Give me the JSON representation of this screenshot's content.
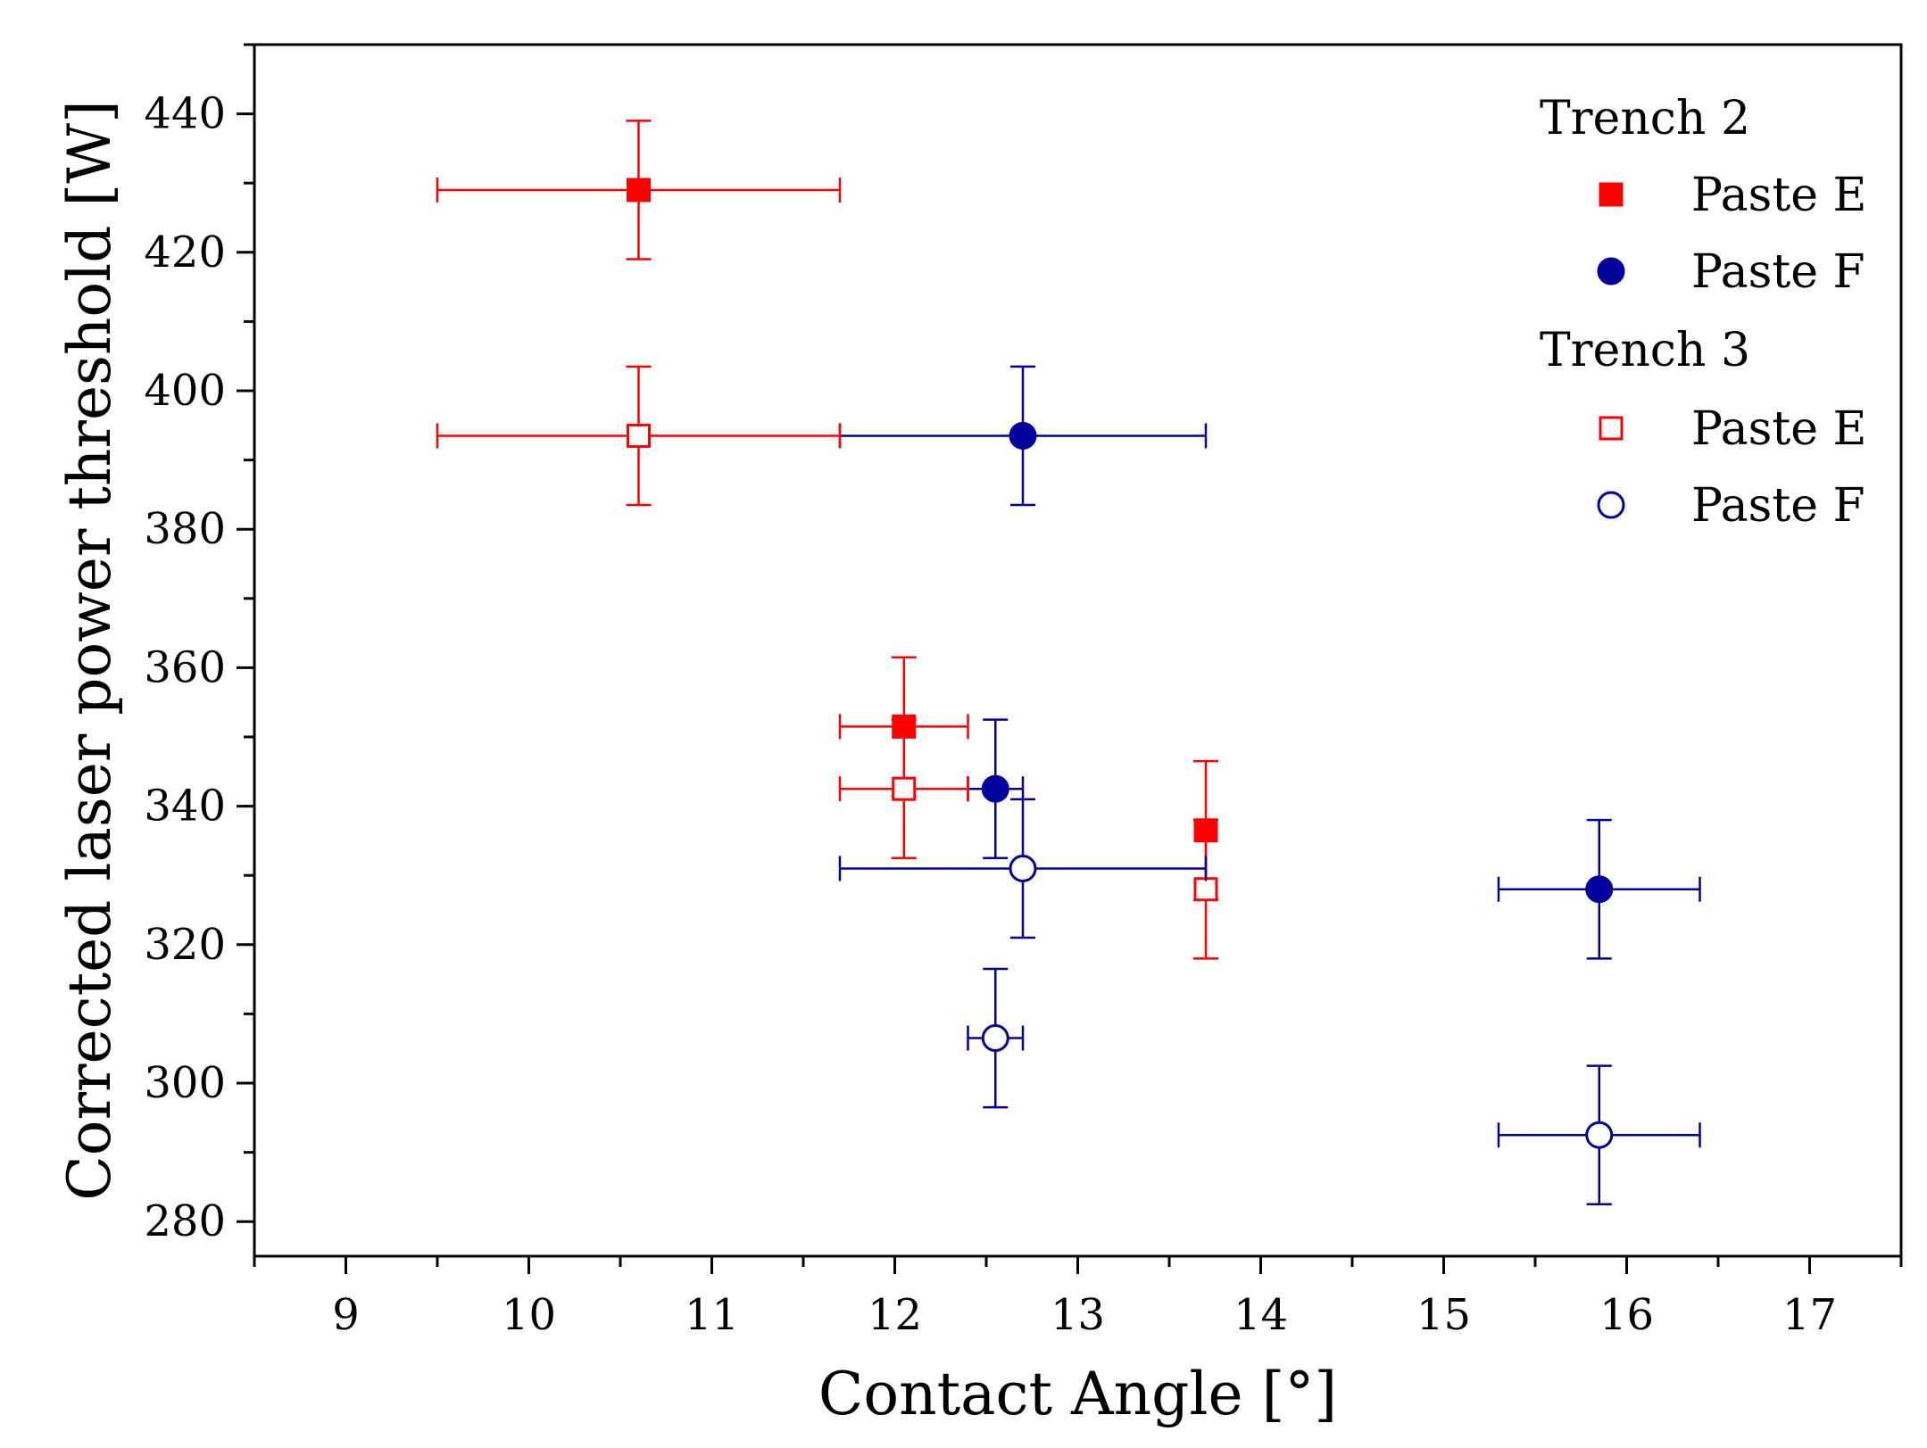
{
  "chart_data": {
    "type": "scatter",
    "title": "",
    "xlabel": "Contact Angle [°]",
    "ylabel": "Corrected laser power threshold [W]",
    "xlim": [
      8.5,
      17.5
    ],
    "ylim": [
      275,
      450
    ],
    "x_ticks": [
      9,
      10,
      11,
      12,
      13,
      14,
      15,
      16,
      17
    ],
    "y_ticks": [
      280,
      300,
      320,
      340,
      360,
      380,
      400,
      420,
      440
    ],
    "grid": false,
    "legend_position": "top-right",
    "legend_groups": [
      {
        "title": "Trench 2",
        "entries": [
          "Paste E",
          "Paste F"
        ]
      },
      {
        "title": "Trench 3",
        "entries": [
          "Paste E",
          "Paste F"
        ]
      }
    ],
    "series": [
      {
        "name": "Trench 2 Paste E",
        "group": "Trench 2",
        "label": "Paste E",
        "marker": "square",
        "filled": true,
        "color": "#ff0000",
        "points": [
          {
            "x": 10.6,
            "y": 429,
            "xerr": 1.1,
            "yerr": 10
          },
          {
            "x": 12.05,
            "y": 351.5,
            "xerr": 0.35,
            "yerr": 10
          },
          {
            "x": 13.7,
            "y": 336.5,
            "xerr": 0,
            "yerr": 10
          }
        ]
      },
      {
        "name": "Trench 2 Paste F",
        "group": "Trench 2",
        "label": "Paste F",
        "marker": "circle",
        "filled": true,
        "color": "#00009c",
        "points": [
          {
            "x": 12.7,
            "y": 393.5,
            "xerr": 1.0,
            "yerr": 10
          },
          {
            "x": 12.55,
            "y": 342.5,
            "xerr": 0.15,
            "yerr": 10
          },
          {
            "x": 15.85,
            "y": 328,
            "xerr": 0.55,
            "yerr": 10
          }
        ]
      },
      {
        "name": "Trench 3 Paste E",
        "group": "Trench 3",
        "label": "Paste E",
        "marker": "square",
        "filled": false,
        "color": "#ff0000",
        "points": [
          {
            "x": 10.6,
            "y": 393.5,
            "xerr": 1.1,
            "yerr": 10
          },
          {
            "x": 12.05,
            "y": 342.5,
            "xerr": 0.35,
            "yerr": 10
          },
          {
            "x": 13.7,
            "y": 328,
            "xerr": 0,
            "yerr": 10
          }
        ]
      },
      {
        "name": "Trench 3 Paste F",
        "group": "Trench 3",
        "label": "Paste F",
        "marker": "circle",
        "filled": false,
        "color": "#00009c",
        "points": [
          {
            "x": 12.7,
            "y": 331,
            "xerr": 1.0,
            "yerr": 10
          },
          {
            "x": 12.55,
            "y": 306.5,
            "xerr": 0.15,
            "yerr": 10
          },
          {
            "x": 15.85,
            "y": 292.5,
            "xerr": 0.55,
            "yerr": 10
          }
        ]
      }
    ]
  }
}
